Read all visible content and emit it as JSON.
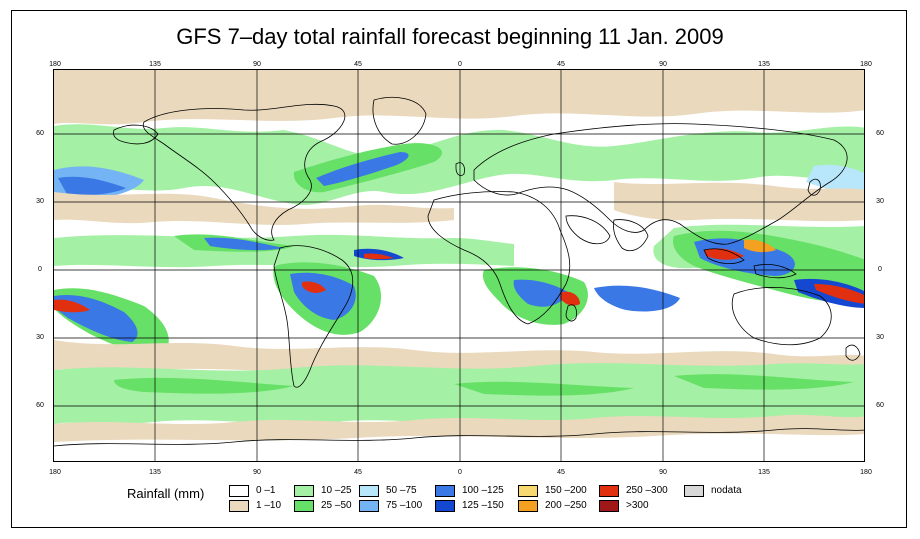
{
  "title": "GFS 7–day total rainfall forecast beginning 11 Jan. 2009",
  "axes": {
    "longitude_labels": [
      "180",
      "135",
      "90",
      "45",
      "0",
      "45",
      "90",
      "135",
      "180"
    ],
    "latitude_labels": [
      "60",
      "30",
      "0",
      "30",
      "60"
    ]
  },
  "legend": {
    "title": "Rainfall (mm)",
    "items": [
      {
        "label": "0 –1",
        "color": "#ffffff"
      },
      {
        "label": "1 –10",
        "color": "#ead9bd"
      },
      {
        "label": "10 –25",
        "color": "#a4f0a4"
      },
      {
        "label": "25 –50",
        "color": "#66e066"
      },
      {
        "label": "50 –75",
        "color": "#b8e6fa"
      },
      {
        "label": "75 –100",
        "color": "#74b4f4"
      },
      {
        "label": "100 –125",
        "color": "#3a78e6"
      },
      {
        "label": "125 –150",
        "color": "#1448d0"
      },
      {
        "label": "150 –200",
        "color": "#f8d870"
      },
      {
        "label": "200 –250",
        "color": "#f4a020"
      },
      {
        "label": "250 –300",
        "color": "#e03010"
      },
      {
        "label": ">300",
        "color": "#a01818"
      },
      {
        "label": "nodata",
        "color": "#d8d8d8"
      }
    ]
  },
  "colors": {
    "white": "#ffffff",
    "tan": "#ead9bd",
    "light_green": "#a4f0a4",
    "green": "#66e066",
    "light_blue": "#b8e6fa",
    "mid_blue": "#74b4f4",
    "blue": "#3a78e6",
    "dark_blue": "#1448d0",
    "orange": "#f4a020",
    "red": "#e03010",
    "coast": "#000000",
    "grid": "#000000"
  }
}
